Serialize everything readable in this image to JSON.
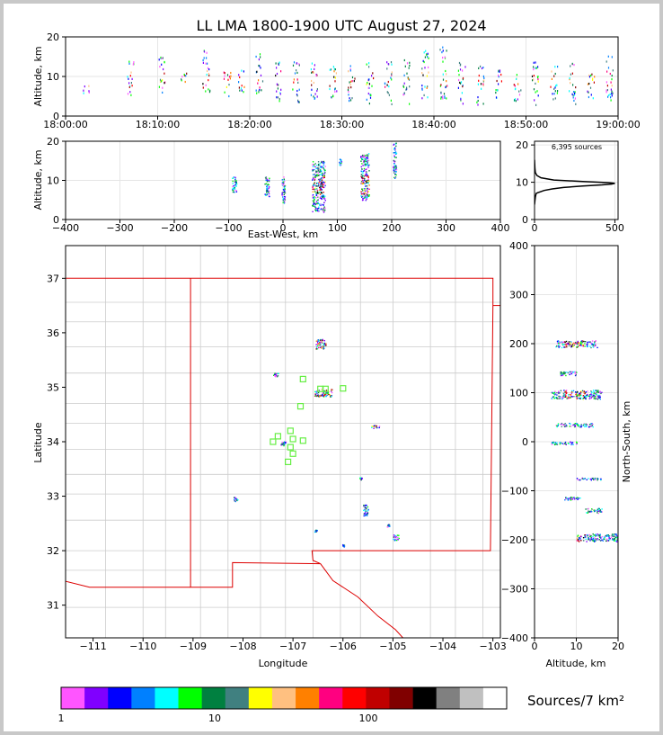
{
  "title": "LL LMA 1800-1900 UTC August 27, 2024",
  "colorbar": {
    "label": "Sources/7 km²",
    "tick_labels": [
      "1",
      "10",
      "100"
    ],
    "colors": [
      "#ff55ff",
      "#8000ff",
      "#0000ff",
      "#0080ff",
      "#00ffff",
      "#00ff00",
      "#008040",
      "#408080",
      "#ffff00",
      "#ffc080",
      "#ff8000",
      "#ff0080",
      "#ff0000",
      "#c00000",
      "#800000",
      "#000000",
      "#808080",
      "#c0c0c0",
      "#ffffff"
    ]
  },
  "chart_data": [
    {
      "type": "scatter",
      "name": "time-height",
      "xlabel": "",
      "ylabel": "Altitude, km",
      "x_tick_labels": [
        "18:00:00",
        "18:10:00",
        "18:20:00",
        "18:30:00",
        "18:40:00",
        "18:50:00",
        "19:00:00"
      ],
      "ylim": [
        0,
        20
      ],
      "y_ticks": [
        0,
        10,
        20
      ],
      "columns": [
        {
          "t": 4.5,
          "y0": 6,
          "y1": 8
        },
        {
          "t": 14,
          "y0": 5,
          "y1": 14
        },
        {
          "t": 21,
          "y0": 6,
          "y1": 16
        },
        {
          "t": 25.5,
          "y0": 7,
          "y1": 11
        },
        {
          "t": 30.5,
          "y0": 6,
          "y1": 18
        },
        {
          "t": 35,
          "y0": 5,
          "y1": 12
        },
        {
          "t": 38,
          "y0": 6,
          "y1": 12
        },
        {
          "t": 42,
          "y0": 6,
          "y1": 16
        },
        {
          "t": 46,
          "y0": 4,
          "y1": 14
        },
        {
          "t": 50,
          "y0": 3,
          "y1": 14
        },
        {
          "t": 54,
          "y0": 3,
          "y1": 14
        },
        {
          "t": 58,
          "y0": 3,
          "y1": 13
        },
        {
          "t": 62,
          "y0": 3,
          "y1": 13
        },
        {
          "t": 66,
          "y0": 3,
          "y1": 14
        },
        {
          "t": 70,
          "y0": 3,
          "y1": 14
        },
        {
          "t": 74,
          "y0": 3,
          "y1": 15
        },
        {
          "t": 78,
          "y0": 4,
          "y1": 17
        },
        {
          "t": 82,
          "y0": 4,
          "y1": 19
        },
        {
          "t": 86,
          "y0": 3,
          "y1": 14
        },
        {
          "t": 90,
          "y0": 3,
          "y1": 13
        },
        {
          "t": 94,
          "y0": 4,
          "y1": 12
        },
        {
          "t": 98,
          "y0": 4,
          "y1": 12
        },
        {
          "t": 102,
          "y0": 3,
          "y1": 14
        },
        {
          "t": 106,
          "y0": 4,
          "y1": 13
        },
        {
          "t": 110,
          "y0": 3,
          "y1": 14
        },
        {
          "t": 114,
          "y0": 4,
          "y1": 12
        },
        {
          "t": 118,
          "y0": 4,
          "y1": 17
        }
      ]
    },
    {
      "type": "scatter",
      "name": "east-west-height",
      "xlabel": "East-West, km",
      "ylabel": "Altitude, km",
      "xlim": [
        -400,
        400
      ],
      "x_ticks": [
        -400,
        -300,
        -200,
        -100,
        0,
        100,
        200,
        300,
        400
      ],
      "ylim": [
        0,
        20
      ],
      "y_ticks": [
        0,
        10,
        20
      ],
      "clusters": [
        {
          "x": -90,
          "y0": 7,
          "y1": 11,
          "w": 8
        },
        {
          "x": -30,
          "y0": 6,
          "y1": 11,
          "w": 8
        },
        {
          "x": 0,
          "y0": 4,
          "y1": 11,
          "w": 6
        },
        {
          "x": 65,
          "y0": 2,
          "y1": 15,
          "w": 24
        },
        {
          "x": 105,
          "y0": 14,
          "y1": 16,
          "w": 4
        },
        {
          "x": 150,
          "y0": 5,
          "y1": 17,
          "w": 16
        },
        {
          "x": 205,
          "y0": 10,
          "y1": 20,
          "w": 6
        }
      ]
    },
    {
      "type": "line",
      "name": "altitude-histogram",
      "label": "6,395 sources",
      "xlim": [
        0,
        520
      ],
      "x_ticks": [
        0,
        500
      ],
      "ylim": [
        0,
        21
      ],
      "y_ticks": [
        0,
        10,
        20
      ],
      "x": [
        0,
        2,
        5,
        10,
        20,
        40,
        60,
        110,
        180,
        300,
        420,
        480,
        500,
        460,
        300,
        120,
        40,
        15,
        5,
        2,
        0
      ],
      "y": [
        4,
        5,
        6,
        7,
        7.2,
        7.5,
        7.8,
        8.2,
        8.6,
        9.0,
        9.3,
        9.5,
        9.7,
        9.9,
        10.2,
        10.6,
        11.2,
        11.8,
        12.6,
        13.8,
        16
      ]
    },
    {
      "type": "scatter",
      "name": "plan-view",
      "xlabel": "Longitude",
      "ylabel": "Latitude",
      "xlim": [
        -111.55,
        -102.85
      ],
      "x_ticks": [
        -111,
        -110,
        -109,
        -108,
        -107,
        -106,
        -105,
        -104,
        -103
      ],
      "ylim": [
        30.4,
        37.6
      ],
      "y_ticks": [
        31,
        32,
        33,
        34,
        35,
        36,
        37
      ],
      "stations": [
        [
          -106.8,
          35.15
        ],
        [
          -106.85,
          34.65
        ],
        [
          -106.45,
          34.97
        ],
        [
          -106.35,
          34.97
        ],
        [
          -106.0,
          34.98
        ],
        [
          -107.05,
          34.2
        ],
        [
          -107.3,
          34.1
        ],
        [
          -107.4,
          34.0
        ],
        [
          -107.0,
          34.05
        ],
        [
          -106.8,
          34.02
        ],
        [
          -107.05,
          33.9
        ],
        [
          -107.0,
          33.78
        ],
        [
          -107.1,
          33.63
        ]
      ],
      "clusters": [
        {
          "lon": -106.45,
          "lat": 35.8,
          "w": 0.2,
          "h": 0.18
        },
        {
          "lon": -106.4,
          "lat": 34.9,
          "w": 0.35,
          "h": 0.14
        },
        {
          "lon": -107.35,
          "lat": 35.23,
          "w": 0.1,
          "h": 0.08
        },
        {
          "lon": -107.2,
          "lat": 33.97,
          "w": 0.1,
          "h": 0.08
        },
        {
          "lon": -108.15,
          "lat": 32.95,
          "w": 0.08,
          "h": 0.08
        },
        {
          "lon": -105.35,
          "lat": 34.28,
          "w": 0.18,
          "h": 0.05
        },
        {
          "lon": -105.55,
          "lat": 32.75,
          "w": 0.1,
          "h": 0.2
        },
        {
          "lon": -104.95,
          "lat": 32.25,
          "w": 0.12,
          "h": 0.1
        },
        {
          "lon": -105.1,
          "lat": 32.47,
          "w": 0.05,
          "h": 0.05
        },
        {
          "lon": -105.65,
          "lat": 33.33,
          "w": 0.05,
          "h": 0.04
        },
        {
          "lon": -106.55,
          "lat": 32.37,
          "w": 0.05,
          "h": 0.04
        },
        {
          "lon": -106.0,
          "lat": 32.1,
          "w": 0.05,
          "h": 0.04
        }
      ]
    },
    {
      "type": "scatter",
      "name": "north-south-height",
      "xlabel": "Altitude, km",
      "ylabel": "North-South, km",
      "xlim": [
        0,
        20
      ],
      "x_ticks": [
        0,
        10,
        20
      ],
      "ylim": [
        -400,
        400
      ],
      "y_ticks": [
        -400,
        -300,
        -200,
        -100,
        0,
        100,
        200,
        300,
        400
      ],
      "clusters": [
        {
          "y": 200,
          "x0": 5,
          "x1": 15,
          "h": 14
        },
        {
          "y": 140,
          "x0": 6,
          "x1": 10,
          "h": 8
        },
        {
          "y": 97,
          "x0": 4,
          "x1": 16,
          "h": 18
        },
        {
          "y": 35,
          "x0": 5,
          "x1": 14,
          "h": 8
        },
        {
          "y": -2,
          "x0": 4,
          "x1": 10,
          "h": 6
        },
        {
          "y": -75,
          "x0": 10,
          "x1": 16,
          "h": 4
        },
        {
          "y": -115,
          "x0": 7,
          "x1": 11,
          "h": 6
        },
        {
          "y": -140,
          "x0": 12,
          "x1": 16,
          "h": 10
        },
        {
          "y": -195,
          "x0": 10,
          "x1": 20,
          "h": 16
        }
      ]
    }
  ]
}
